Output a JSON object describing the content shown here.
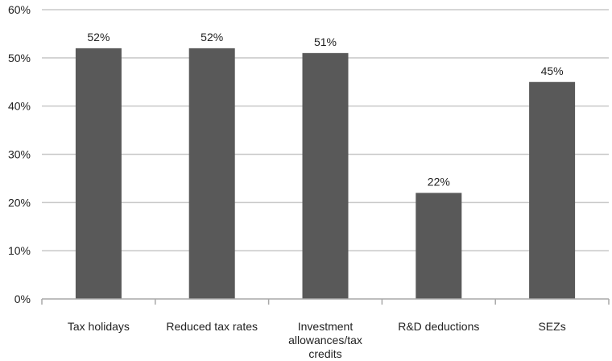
{
  "chart_data": {
    "type": "bar",
    "categories": [
      [
        "Tax holidays"
      ],
      [
        "Reduced tax rates"
      ],
      [
        "Investment",
        "allowances/tax",
        "credits"
      ],
      [
        "R&D deductions"
      ],
      [
        "SEZs"
      ]
    ],
    "values": [
      52,
      52,
      51,
      22,
      45
    ],
    "data_labels": [
      "52%",
      "52%",
      "51%",
      "22%",
      "45%"
    ],
    "y_ticks": [
      0,
      10,
      20,
      30,
      40,
      50,
      60
    ],
    "y_tick_labels": [
      "0%",
      "10%",
      "20%",
      "30%",
      "40%",
      "50%",
      "60%"
    ],
    "ylim": [
      0,
      60
    ],
    "grid": true,
    "legend": "none",
    "colors": {
      "bar": "#595959",
      "grid": "#c8c8c8",
      "axis": "#a8a8a8",
      "text": "#222222"
    }
  }
}
